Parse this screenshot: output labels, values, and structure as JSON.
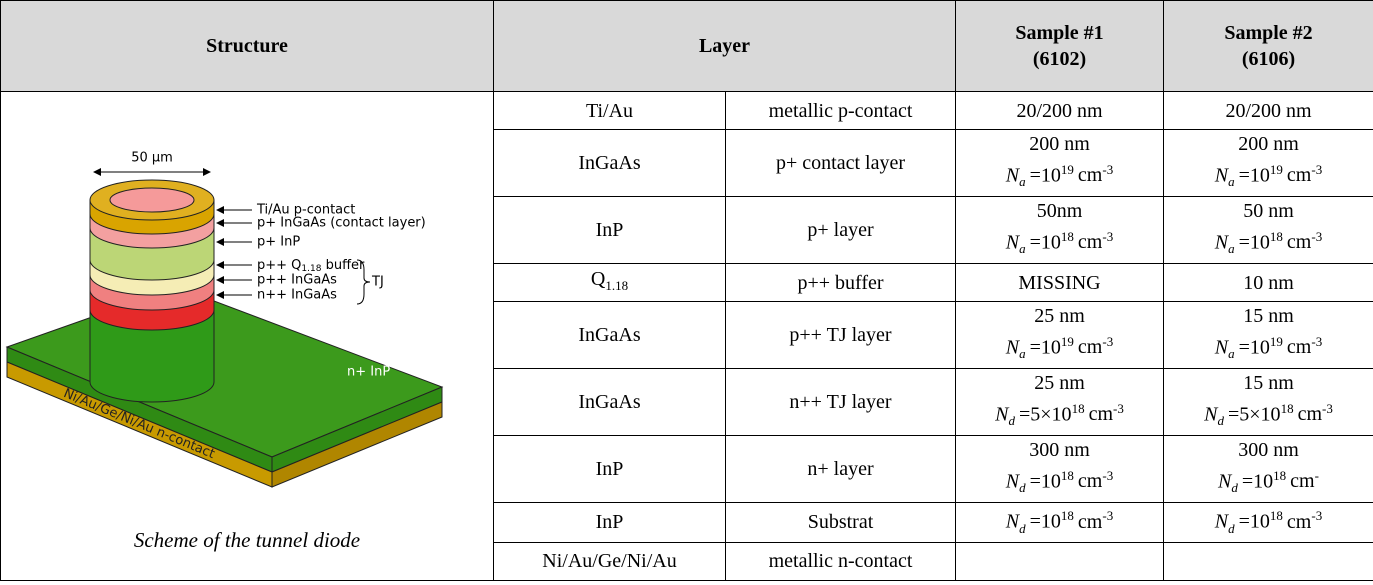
{
  "header": {
    "structure": "Structure",
    "layer": "Layer",
    "sample1": [
      "Sample #1",
      "(6102)"
    ],
    "sample2": [
      "Sample #2",
      "(6106)"
    ]
  },
  "diagram": {
    "width_label": "50 µm",
    "layer_labels": [
      "Ti/Au p-contact",
      "p+ InGaAs (contact layer)",
      "p+ InP",
      [
        "p++ Q",
        "1.18",
        " buffer"
      ],
      "p++ InGaAs",
      "n++ InGaAs"
    ],
    "tj": "TJ",
    "substrate": "n+ InP",
    "n_contact": "Ni/Au/Ge/Ni/Au n-contact",
    "caption": "Scheme of the tunnel diode"
  },
  "table": {
    "rows": [
      {
        "material": "Ti/Au",
        "role": "metallic p-contact",
        "sample1": {
          "thickness": "20/200 nm"
        },
        "sample2": {
          "thickness": "20/200 nm"
        }
      },
      {
        "material": "InGaAs",
        "role": "p+ contact layer",
        "sample1": {
          "thickness": "200 nm",
          "doping": {
            "symbol": "N",
            "sub": "a",
            "value": "=10",
            "exp": "19",
            "unit": "cm",
            "unit_exp": "-3"
          }
        },
        "sample2": {
          "thickness": "200 nm",
          "doping": {
            "symbol": "N",
            "sub": "a",
            "value": "=10",
            "exp": "19",
            "unit": "cm",
            "unit_exp": "-3"
          }
        }
      },
      {
        "material": "InP",
        "role": "p+ layer",
        "sample1": {
          "thickness": "50nm",
          "doping": {
            "symbol": "N",
            "sub": "a",
            "value": "=10",
            "exp": "18",
            "unit": "cm",
            "unit_exp": "-3"
          }
        },
        "sample2": {
          "thickness": "50 nm",
          "doping": {
            "symbol": "N",
            "sub": "a",
            "value": "=10",
            "exp": "18",
            "unit": "cm",
            "unit_exp": "-3"
          }
        }
      },
      {
        "material": [
          "Q",
          "1.18"
        ],
        "role": "p++ buffer",
        "sample1": {
          "thickness": "MISSING"
        },
        "sample2": {
          "thickness": "10 nm"
        }
      },
      {
        "material": "InGaAs",
        "role": "p++ TJ layer",
        "sample1": {
          "thickness": "25 nm",
          "doping": {
            "symbol": "N",
            "sub": "a",
            "value": "=10",
            "exp": "19",
            "unit": "cm",
            "unit_exp": "-3"
          }
        },
        "sample2": {
          "thickness": "15 nm",
          "doping": {
            "symbol": "N",
            "sub": "a",
            "value": "=10",
            "exp": "19",
            "unit": "cm",
            "unit_exp": "-3"
          }
        }
      },
      {
        "material": "InGaAs",
        "role": "n++ TJ layer",
        "sample1": {
          "thickness": "25 nm",
          "doping": {
            "symbol": "N",
            "sub": "d",
            "value": "=5×10",
            "exp": "18",
            "unit": "cm",
            "unit_exp": "-3"
          }
        },
        "sample2": {
          "thickness": "15 nm",
          "doping": {
            "symbol": "N",
            "sub": "d",
            "value": "=5×10",
            "exp": "18",
            "unit": "cm",
            "unit_exp": "-3"
          }
        }
      },
      {
        "material": "InP",
        "role": "n+ layer",
        "sample1": {
          "thickness": "300 nm",
          "doping": {
            "symbol": "N",
            "sub": "d",
            "value": "=10",
            "exp": "18",
            "unit": "cm",
            "unit_exp": "-3"
          }
        },
        "sample2": {
          "thickness": "300 nm",
          "doping": {
            "symbol": "N",
            "sub": "d",
            "value": "=10",
            "exp": "18",
            "unit": "cm",
            "unit_exp": "-"
          }
        }
      },
      {
        "material": "InP",
        "role": "Substrat",
        "sample1": {
          "doping": {
            "symbol": "N",
            "sub": "d",
            "value": "=10",
            "exp": "18",
            "unit": "cm",
            "unit_exp": "-3"
          }
        },
        "sample2": {
          "doping": {
            "symbol": "N",
            "sub": "d",
            "value": "=10",
            "exp": "18",
            "unit": "cm",
            "unit_exp": "-3"
          }
        }
      },
      {
        "material": "Ni/Au/Ge/Ni/Au",
        "role": "metallic n-contact"
      }
    ]
  }
}
